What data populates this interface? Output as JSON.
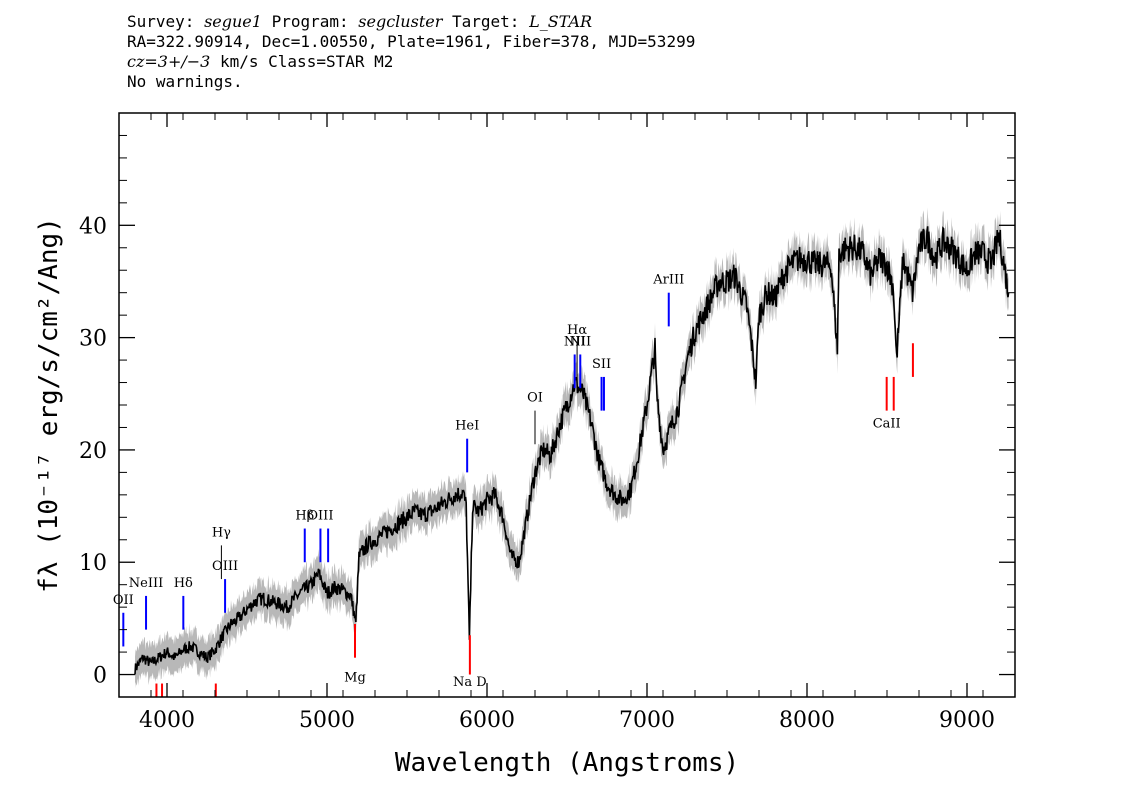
{
  "header": {
    "survey_label": "Survey:",
    "survey": "segue1",
    "program_label": "Program:",
    "program": "segcluster",
    "target_label": "Target:",
    "target": "L_STAR",
    "line2": "RA=322.90914, Dec=1.00550, Plate=1961, Fiber=378, MJD=53299",
    "cz_label": "cz=3+/−3",
    "line3_rest": " km/s Class=STAR M2",
    "line4": "No warnings."
  },
  "chart_data": {
    "type": "line",
    "xlabel": "Wavelength (Angstroms)",
    "ylabel": "fλ (10⁻¹⁷ erg/s/cm²/Ang)",
    "xlim": [
      3700,
      9300
    ],
    "ylim": [
      -2,
      50
    ],
    "x_ticks": [
      4000,
      5000,
      6000,
      7000,
      8000,
      9000
    ],
    "y_ticks": [
      0,
      10,
      20,
      30,
      40
    ],
    "grid": false,
    "colors": {
      "flux": "#000000",
      "error_band": "#b8b8b8",
      "emission": "#0000ff",
      "absorption": "#ff0000",
      "other": "#000000"
    },
    "series": [
      {
        "x": [
          3800,
          3850,
          3900,
          3950,
          4000,
          4050,
          4100,
          4150,
          4200,
          4250,
          4300,
          4350,
          4400,
          4450,
          4500,
          4550,
          4600,
          4650,
          4700,
          4750,
          4800,
          4850,
          4900,
          4950,
          5000,
          5050,
          5100,
          5150,
          5180,
          5200,
          5250,
          5300,
          5350,
          5400,
          5450,
          5500,
          5550,
          5600,
          5650,
          5700,
          5750,
          5800,
          5850,
          5870,
          5890,
          5910,
          5950,
          6000,
          6050,
          6100,
          6150,
          6200,
          6250,
          6300,
          6350,
          6400,
          6450,
          6500,
          6550,
          6600,
          6650,
          6700,
          6750,
          6800,
          6850,
          6900,
          6950,
          7000,
          7050,
          7060,
          7100,
          7150,
          7200,
          7250,
          7300,
          7350,
          7400,
          7450,
          7500,
          7550,
          7600,
          7620,
          7650,
          7680,
          7700,
          7750,
          7800,
          7850,
          7900,
          7950,
          8000,
          8050,
          8100,
          8150,
          8190,
          8200,
          8250,
          8300,
          8350,
          8400,
          8450,
          8500,
          8540,
          8560,
          8600,
          8660,
          8700,
          8750,
          8800,
          8850,
          8900,
          8950,
          9000,
          9050,
          9100,
          9150,
          9200,
          9220,
          9260
        ],
        "y": [
          0.5,
          1.5,
          1.0,
          1.5,
          2.0,
          1.5,
          2.2,
          2.5,
          2.0,
          1.5,
          2.2,
          3.5,
          4.5,
          5.0,
          5.8,
          6.5,
          6.8,
          6.5,
          6.3,
          6.0,
          6.8,
          7.5,
          8.0,
          9.0,
          7.2,
          7.8,
          7.5,
          7.0,
          4.5,
          10.5,
          11.5,
          12.0,
          12.5,
          13.0,
          13.5,
          14.0,
          14.5,
          14.2,
          14.5,
          15.0,
          15.5,
          16.0,
          16.2,
          15.0,
          3.0,
          15.0,
          14.5,
          15.5,
          16.0,
          14.0,
          10.5,
          10.0,
          14.0,
          18.0,
          20.0,
          19.5,
          22.0,
          24.0,
          26.0,
          25.0,
          22.5,
          19.0,
          17.0,
          16.0,
          15.5,
          16.5,
          20.0,
          24.0,
          29.0,
          25.0,
          20.0,
          22.0,
          24.0,
          28.0,
          30.5,
          32.0,
          33.5,
          35.0,
          35.0,
          35.5,
          33.5,
          33.0,
          30.0,
          26.0,
          32.0,
          34.0,
          33.5,
          35.5,
          36.5,
          37.0,
          37.0,
          36.5,
          36.5,
          36.5,
          29.0,
          37.5,
          38.0,
          38.0,
          37.5,
          35.5,
          37.0,
          36.5,
          34.5,
          28.0,
          37.0,
          34.0,
          38.0,
          39.0,
          37.0,
          38.5,
          38.0,
          37.0,
          36.0,
          37.5,
          37.5,
          36.5,
          39.0,
          37.5,
          34.0
        ],
        "noise_amplitude": 0.8
      }
    ],
    "lines": [
      {
        "label": "OII",
        "x": 3727,
        "type": "emission",
        "ymin": 2.5,
        "ymax": 5.5,
        "label_y": 6.3
      },
      {
        "label": "NeIII",
        "x": 3869,
        "type": "emission",
        "ymin": 4.0,
        "ymax": 7.0,
        "label_y": 7.8
      },
      {
        "label": "Hδ",
        "x": 4102,
        "type": "emission",
        "ymin": 4.0,
        "ymax": 7.0,
        "label_y": 7.8
      },
      {
        "label": "Hγ",
        "x": 4340,
        "type": "other",
        "ymin": 8.5,
        "ymax": 11.5,
        "label_y": 12.3
      },
      {
        "label": "OIII",
        "x": 4363,
        "type": "emission",
        "ymin": 5.5,
        "ymax": 8.5,
        "label_y": 9.3
      },
      {
        "label": "Hβ",
        "x": 4861,
        "type": "emission",
        "ymin": 10.0,
        "ymax": 13.0,
        "label_y": 13.8
      },
      {
        "label": "OIII",
        "x": 4959,
        "type": "emission",
        "ymin": 10.0,
        "ymax": 13.0,
        "label_y": 13.8
      },
      {
        "label": "",
        "x": 5007,
        "type": "emission",
        "ymin": 10.0,
        "ymax": 13.0,
        "label_y": 13.8
      },
      {
        "label": "Mg",
        "x": 5175,
        "type": "absorption",
        "ymin": 1.5,
        "ymax": 4.5,
        "label_y": -0.6
      },
      {
        "label": "HeI",
        "x": 5876,
        "type": "emission",
        "ymin": 18.0,
        "ymax": 21.0,
        "label_y": 21.8
      },
      {
        "label": "Na D",
        "x": 5893,
        "type": "absorption",
        "ymin": 0.0,
        "ymax": 3.5,
        "label_y": -1.0
      },
      {
        "label": "OI",
        "x": 6300,
        "type": "other",
        "ymin": 20.5,
        "ymax": 23.5,
        "label_y": 24.3
      },
      {
        "label": "NII",
        "x": 6548,
        "type": "emission",
        "ymin": 25.5,
        "ymax": 28.5,
        "label_y": 29.3
      },
      {
        "label": "Hα",
        "x": 6563,
        "type": "other",
        "ymin": 26.5,
        "ymax": 29.5,
        "label_y": 30.3
      },
      {
        "label": "NII",
        "x": 6583,
        "type": "emission",
        "ymin": 25.5,
        "ymax": 28.5,
        "label_y": 29.3
      },
      {
        "label": "SII",
        "x": 6716,
        "type": "emission",
        "ymin": 23.5,
        "ymax": 26.5,
        "label_y": 27.3
      },
      {
        "label": "",
        "x": 6731,
        "type": "emission",
        "ymin": 23.5,
        "ymax": 26.5,
        "label_y": 27.3
      },
      {
        "label": "ArIII",
        "x": 7136,
        "type": "emission",
        "ymin": 31.0,
        "ymax": 34.0,
        "label_y": 34.8
      },
      {
        "label": "",
        "x": 3934,
        "type": "absorption",
        "ymin": -2.0,
        "ymax": -0.8,
        "label_y": -3
      },
      {
        "label": "",
        "x": 3969,
        "type": "absorption",
        "ymin": -2.0,
        "ymax": -0.8,
        "label_y": -3
      },
      {
        "label": "",
        "x": 4305,
        "type": "absorption",
        "ymin": -2.0,
        "ymax": -0.8,
        "label_y": -3
      },
      {
        "label": "CaII",
        "x": 8498,
        "type": "absorption",
        "ymin": 23.5,
        "ymax": 26.5,
        "label_y": 22.0
      },
      {
        "label": "",
        "x": 8542,
        "type": "absorption",
        "ymin": 23.5,
        "ymax": 26.5,
        "label_y": 22.0
      },
      {
        "label": "",
        "x": 8662,
        "type": "absorption",
        "ymin": 26.5,
        "ymax": 29.5,
        "label_y": 25.0
      }
    ]
  }
}
